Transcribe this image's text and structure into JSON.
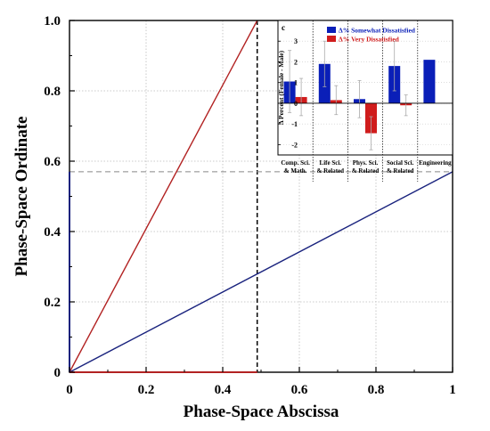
{
  "chart_data": [
    {
      "type": "line",
      "xlabel": "Phase-Space Abscissa",
      "ylabel": "Phase-Space Ordinate",
      "xlim": [
        0,
        1
      ],
      "ylim": [
        0,
        1
      ],
      "xticks": [
        "0",
        "0.2",
        "0.4",
        "0.6",
        "0.8",
        "1"
      ],
      "yticks": [
        "0",
        "0.2",
        "0.4",
        "0.6",
        "0.8",
        "1.0"
      ],
      "grid": true,
      "series": [
        {
          "color": "#b22222",
          "x": [
            0,
            0.49
          ],
          "y": [
            0,
            1.0
          ]
        },
        {
          "color": "#1a237e",
          "x": [
            0,
            1.0
          ],
          "y": [
            0,
            0.57
          ]
        }
      ],
      "reference_lines": [
        {
          "orientation": "vertical",
          "x": 0.49,
          "style": "dashed",
          "color": "#000000"
        },
        {
          "orientation": "horizontal",
          "y": 0.57,
          "style": "dashed",
          "color": "#888888"
        }
      ],
      "axis_highlights": [
        {
          "axis": "x",
          "from": 0,
          "to": 0.49,
          "color": "#b22222"
        },
        {
          "axis": "y",
          "from": 0,
          "to": 0.57,
          "color": "#1a237e"
        }
      ]
    },
    {
      "type": "bar",
      "panel_label": "c",
      "categories": [
        [
          "Comp. Sci.",
          "& Math."
        ],
        [
          "Life Sci.",
          "& Related"
        ],
        [
          "Phys. Sci.",
          "& Related"
        ],
        [
          "Social Sci.",
          "& Related"
        ],
        [
          "Engineering"
        ]
      ],
      "ylabel": "Δ Percent (Female - Male)",
      "ylim": [
        -2.5,
        4
      ],
      "yticks": [
        -2,
        -1,
        0,
        1,
        2,
        3
      ],
      "legend_position": "top",
      "series": [
        {
          "name": "Δ% Somewhat Dissatisfied",
          "color": "#0a1fb8",
          "values": [
            1.05,
            1.9,
            0.2,
            1.8,
            2.1
          ],
          "errors": [
            1.5,
            1.1,
            0.9,
            1.2,
            null
          ]
        },
        {
          "name": "Δ% Very Dissatisfied",
          "color": "#d01c1c",
          "values": [
            0.3,
            0.15,
            -1.45,
            -0.1,
            null
          ],
          "errors": [
            0.9,
            0.7,
            0.8,
            0.5,
            null
          ]
        }
      ]
    }
  ]
}
